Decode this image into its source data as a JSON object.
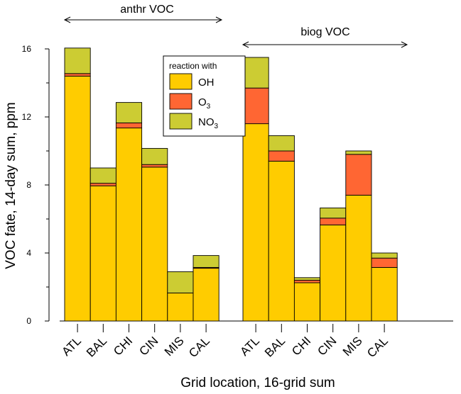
{
  "chart_data": {
    "type": "bar",
    "stacked": true,
    "xlabel": "Grid location, 16-grid sum",
    "ylabel": "VOC fate, 14-day sum, ppm",
    "ylim": [
      0,
      16
    ],
    "yticks": [
      0,
      4,
      8,
      12,
      16
    ],
    "grid": false,
    "legend": {
      "title": "reaction with",
      "placement": "top-center",
      "entries": [
        {
          "label": "OH",
          "sub": "",
          "color": "#ffcc00"
        },
        {
          "label": "O",
          "sub": "3",
          "color": "#ff6633"
        },
        {
          "label": "NO",
          "sub": "3",
          "color": "#cccc33"
        }
      ]
    },
    "groups": [
      {
        "label": "anthr VOC",
        "categories": [
          "ATL",
          "BAL",
          "CHI",
          "CIN",
          "MIS",
          "CAL"
        ]
      },
      {
        "label": "biog VOC",
        "categories": [
          "ATL",
          "BAL",
          "CHI",
          "CIN",
          "MIS",
          "CAL"
        ]
      }
    ],
    "series": [
      {
        "name": "OH",
        "color": "#ffcc00",
        "values": [
          14.4,
          7.95,
          11.35,
          9.05,
          1.65,
          3.1,
          11.6,
          9.4,
          2.25,
          5.65,
          7.4,
          3.15
        ]
      },
      {
        "name": "O3",
        "color": "#ff6633",
        "values": [
          0.15,
          0.15,
          0.3,
          0.15,
          0.0,
          0.05,
          2.1,
          0.6,
          0.15,
          0.4,
          2.4,
          0.55
        ]
      },
      {
        "name": "NO3",
        "color": "#cccc33",
        "values": [
          1.5,
          0.9,
          1.2,
          0.95,
          1.25,
          0.7,
          1.8,
          0.9,
          0.15,
          0.6,
          0.2,
          0.3
        ]
      }
    ]
  }
}
